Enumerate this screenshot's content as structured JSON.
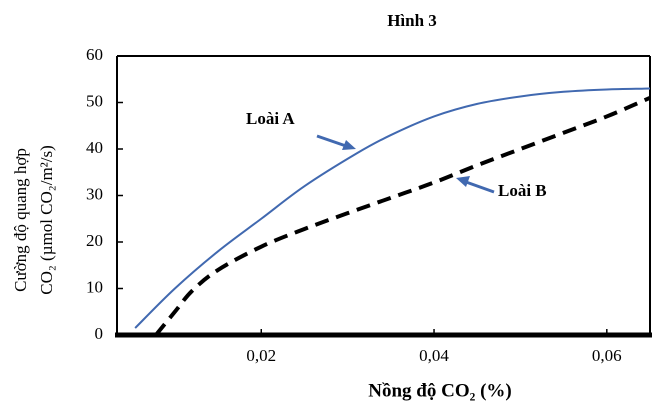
{
  "chart_data": {
    "type": "line",
    "title": "Hình 3",
    "xlabel": "Nồng độ CO₂ (%)",
    "ylabel": [
      "Cường độ quang hợp",
      "CO₂ (µmol CO₂/m²/s)"
    ],
    "xlim": [
      0.0033,
      0.065
    ],
    "ylim": [
      0,
      60
    ],
    "xticks": [
      {
        "value": 0.02,
        "label": "0,02"
      },
      {
        "value": 0.04,
        "label": "0,04"
      },
      {
        "value": 0.06,
        "label": "0,06"
      }
    ],
    "yticks": [
      0,
      10,
      20,
      30,
      40,
      50,
      60
    ],
    "series": [
      {
        "name": "Loài A",
        "color": "#4169b0",
        "dash": false,
        "x": [
          0.0054,
          0.01,
          0.015,
          0.02,
          0.025,
          0.031,
          0.035,
          0.04,
          0.045,
          0.05,
          0.055,
          0.06,
          0.065
        ],
        "values": [
          1.5,
          10,
          18,
          25,
          32,
          39,
          43,
          47,
          49.7,
          51.3,
          52.3,
          52.8,
          53
        ]
      },
      {
        "name": "Loài B",
        "color": "#000000",
        "dash": true,
        "x": [
          0.0078,
          0.01,
          0.012,
          0.015,
          0.02,
          0.025,
          0.03,
          0.035,
          0.04,
          0.045,
          0.05,
          0.055,
          0.06,
          0.065
        ],
        "values": [
          0,
          5,
          9.5,
          14,
          19,
          22.8,
          26.2,
          29.5,
          32.8,
          36.5,
          40,
          43.5,
          47,
          51
        ]
      }
    ]
  }
}
